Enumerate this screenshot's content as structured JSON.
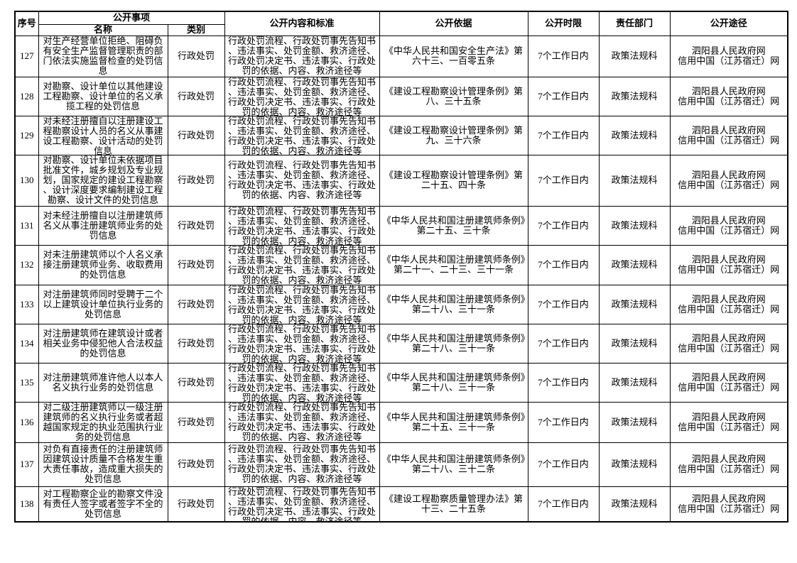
{
  "table": {
    "headers": {
      "no": "序号",
      "matter_group": "公开事项",
      "name": "名称",
      "category": "类别",
      "content": "公开内容和标准",
      "basis": "公开依据",
      "time_limit": "公开时限",
      "department": "责任部门",
      "channel": "公开途径"
    },
    "rows": [
      {
        "no": "127",
        "name": "对生产经营单位拒绝、阻碍负有安全生产监督管理职责的部门依法实施监督检查的处罚信息",
        "category": "行政处罚",
        "content": "行政处罚流程、行政处罚事先告知书、违法事实、处罚金额、救济途径、行政处罚决定书、违法事实、行政处罚的依据、内容、救济途径等",
        "basis": "《中华人民共和国安全生产法》第六十三、一百零五条",
        "time_limit": "7个工作日内",
        "department": "政策法规科",
        "channel": "泗阳县人民政府网\n信用中国（江苏宿迁）网"
      },
      {
        "no": "128",
        "name": "对勘察、设计单位以其他建设工程勘察、设计单位的名义承揽工程的处罚信息",
        "category": "行政处罚",
        "content": "行政处罚流程、行政处罚事先告知书、违法事实、处罚金额、救济途径、行政处罚决定书、违法事实、行政处罚的依据、内容、救济途径等",
        "basis": "《建设工程勘察设计管理条例》第八、三十五条",
        "time_limit": "7个工作日内",
        "department": "政策法规科",
        "channel": "泗阳县人民政府网\n信用中国（江苏宿迁）网"
      },
      {
        "no": "129",
        "name": "对未经注册擅自以注册建设工程勘察设计人员的名义从事建设工程勘察、设计活动的处罚信息",
        "category": "行政处罚",
        "content": "行政处罚流程、行政处罚事先告知书、违法事实、处罚金额、救济途径、行政处罚决定书、违法事实、行政处罚的依据、内容、救济途径等",
        "basis": "《建设工程勘察设计管理条例》第九、三十六条",
        "time_limit": "7个工作日内",
        "department": "政策法规科",
        "channel": "泗阳县人民政府网\n信用中国（江苏宿迁）网"
      },
      {
        "no": "130",
        "name": "对勘察、设计单位未依据项目批准文件，城乡规划及专业规划，国家规定的建设工程勘察、设计深度要求编制建设工程勘察、设计文件的处罚信息",
        "category": "行政处罚",
        "content": "行政处罚流程、行政处罚事先告知书、违法事实、处罚金额、救济途径、行政处罚决定书、违法事实、行政处罚的依据、内容、救济途径等",
        "basis": "《建设工程勘察设计管理条例》第二十五、四十条",
        "time_limit": "7个工作日内",
        "department": "政策法规科",
        "channel": "泗阳县人民政府网\n信用中国（江苏宿迁）网"
      },
      {
        "no": "131",
        "name": "对未经注册擅自以注册建筑师名义从事注册建筑师业务的处罚信息",
        "category": "行政处罚",
        "content": "行政处罚流程、行政处罚事先告知书、违法事实、处罚金额、救济途径、行政处罚决定书、违法事实、行政处罚的依据、内容、救济途径等",
        "basis": "《中华人民共和国注册建筑师条例》第二十五、三十条",
        "time_limit": "7个工作日内",
        "department": "政策法规科",
        "channel": "泗阳县人民政府网\n信用中国（江苏宿迁）网"
      },
      {
        "no": "132",
        "name": "对未注册建筑师以个人名义承接注册建筑师业务、收取费用的处罚信息",
        "category": "行政处罚",
        "content": "行政处罚流程、行政处罚事先告知书、违法事实、处罚金额、救济途径、行政处罚决定书、违法事实、行政处罚的依据、内容、救济途径等",
        "basis": "《中华人民共和国注册建筑师条例》第二十一、二十三、三十一条",
        "time_limit": "7个工作日内",
        "department": "政策法规科",
        "channel": "泗阳县人民政府网\n信用中国（江苏宿迁）网"
      },
      {
        "no": "133",
        "name": "对注册建筑师同时受聘于二个以上建筑设计单位执行业务的处罚信息",
        "category": "行政处罚",
        "content": "行政处罚流程、行政处罚事先告知书、违法事实、处罚金额、救济途径、行政处罚决定书、违法事实、行政处罚的依据、内容、救济途径等",
        "basis": "《中华人民共和国注册建筑师条例》第二十八、三十一条",
        "time_limit": "7个工作日内",
        "department": "政策法规科",
        "channel": "泗阳县人民政府网\n信用中国（江苏宿迁）网"
      },
      {
        "no": "134",
        "name": "对注册建筑师在建筑设计或者相关业务中侵犯他人合法权益的处罚信息",
        "category": "行政处罚",
        "content": "行政处罚流程、行政处罚事先告知书、违法事实、处罚金额、救济途径、行政处罚决定书、违法事实、行政处罚的依据、内容、救济途径等",
        "basis": "《中华人民共和国注册建筑师条例》第二十八、三十一条",
        "time_limit": "7个工作日内",
        "department": "政策法规科",
        "channel": "泗阳县人民政府网\n信用中国（江苏宿迁）网"
      },
      {
        "no": "135",
        "name": "对注册建筑师准许他人以本人名义执行业务的处罚信息",
        "category": "行政处罚",
        "content": "行政处罚流程、行政处罚事先告知书、违法事实、处罚金额、救济途径、行政处罚决定书、违法事实、行政处罚的依据、内容、救济途径等",
        "basis": "《中华人民共和国注册建筑师条例》第二十八、三十一条",
        "time_limit": "7个工作日内",
        "department": "政策法规科",
        "channel": "泗阳县人民政府网\n信用中国（江苏宿迁）网"
      },
      {
        "no": "136",
        "name": "对二级注册建筑师以一级注册建筑师的名义执行业务或者超越国家规定的执业范围执行业务的处罚信息",
        "category": "行政处罚",
        "content": "行政处罚流程、行政处罚事先告知书、违法事实、处罚金额、救济途径、行政处罚决定书、违法事实、行政处罚的依据、内容、救济途径等",
        "basis": "《中华人民共和国注册建筑师条例》第二十五、三十一条",
        "time_limit": "7个工作日内",
        "department": "政策法规科",
        "channel": "泗阳县人民政府网\n信用中国（江苏宿迁）网"
      },
      {
        "no": "137",
        "name": "对负有直接责任的注册建筑师因建筑设计质量不合格发生重大责任事故，造成重大损失的处罚信息",
        "category": "行政处罚",
        "content": "行政处罚流程、行政处罚事先告知书、违法事实、处罚金额、救济途径、行政处罚决定书、违法事实、行政处罚的依据、内容、救济途径等",
        "basis": "《中华人民共和国注册建筑师条例》第二十八、三十二条",
        "time_limit": "7个工作日内",
        "department": "政策法规科",
        "channel": "泗阳县人民政府网\n信用中国（江苏宿迁）网"
      },
      {
        "no": "138",
        "name": "对工程勘察企业的勘察文件没有责任人签字或者签字不全的处罚信息",
        "category": "行政处罚",
        "content": "行政处罚流程、行政处罚事先告知书、违法事实、处罚金额、救济途径、行政处罚决定书、违法事实、行政处罚的依据、内容、救济途径等",
        "basis": "《建设工程勘察质量管理办法》第十三、二十五条",
        "time_limit": "7个工作日内",
        "department": "政策法规科",
        "channel": "泗阳县人民政府网\n信用中国（江苏宿迁）网"
      }
    ]
  }
}
